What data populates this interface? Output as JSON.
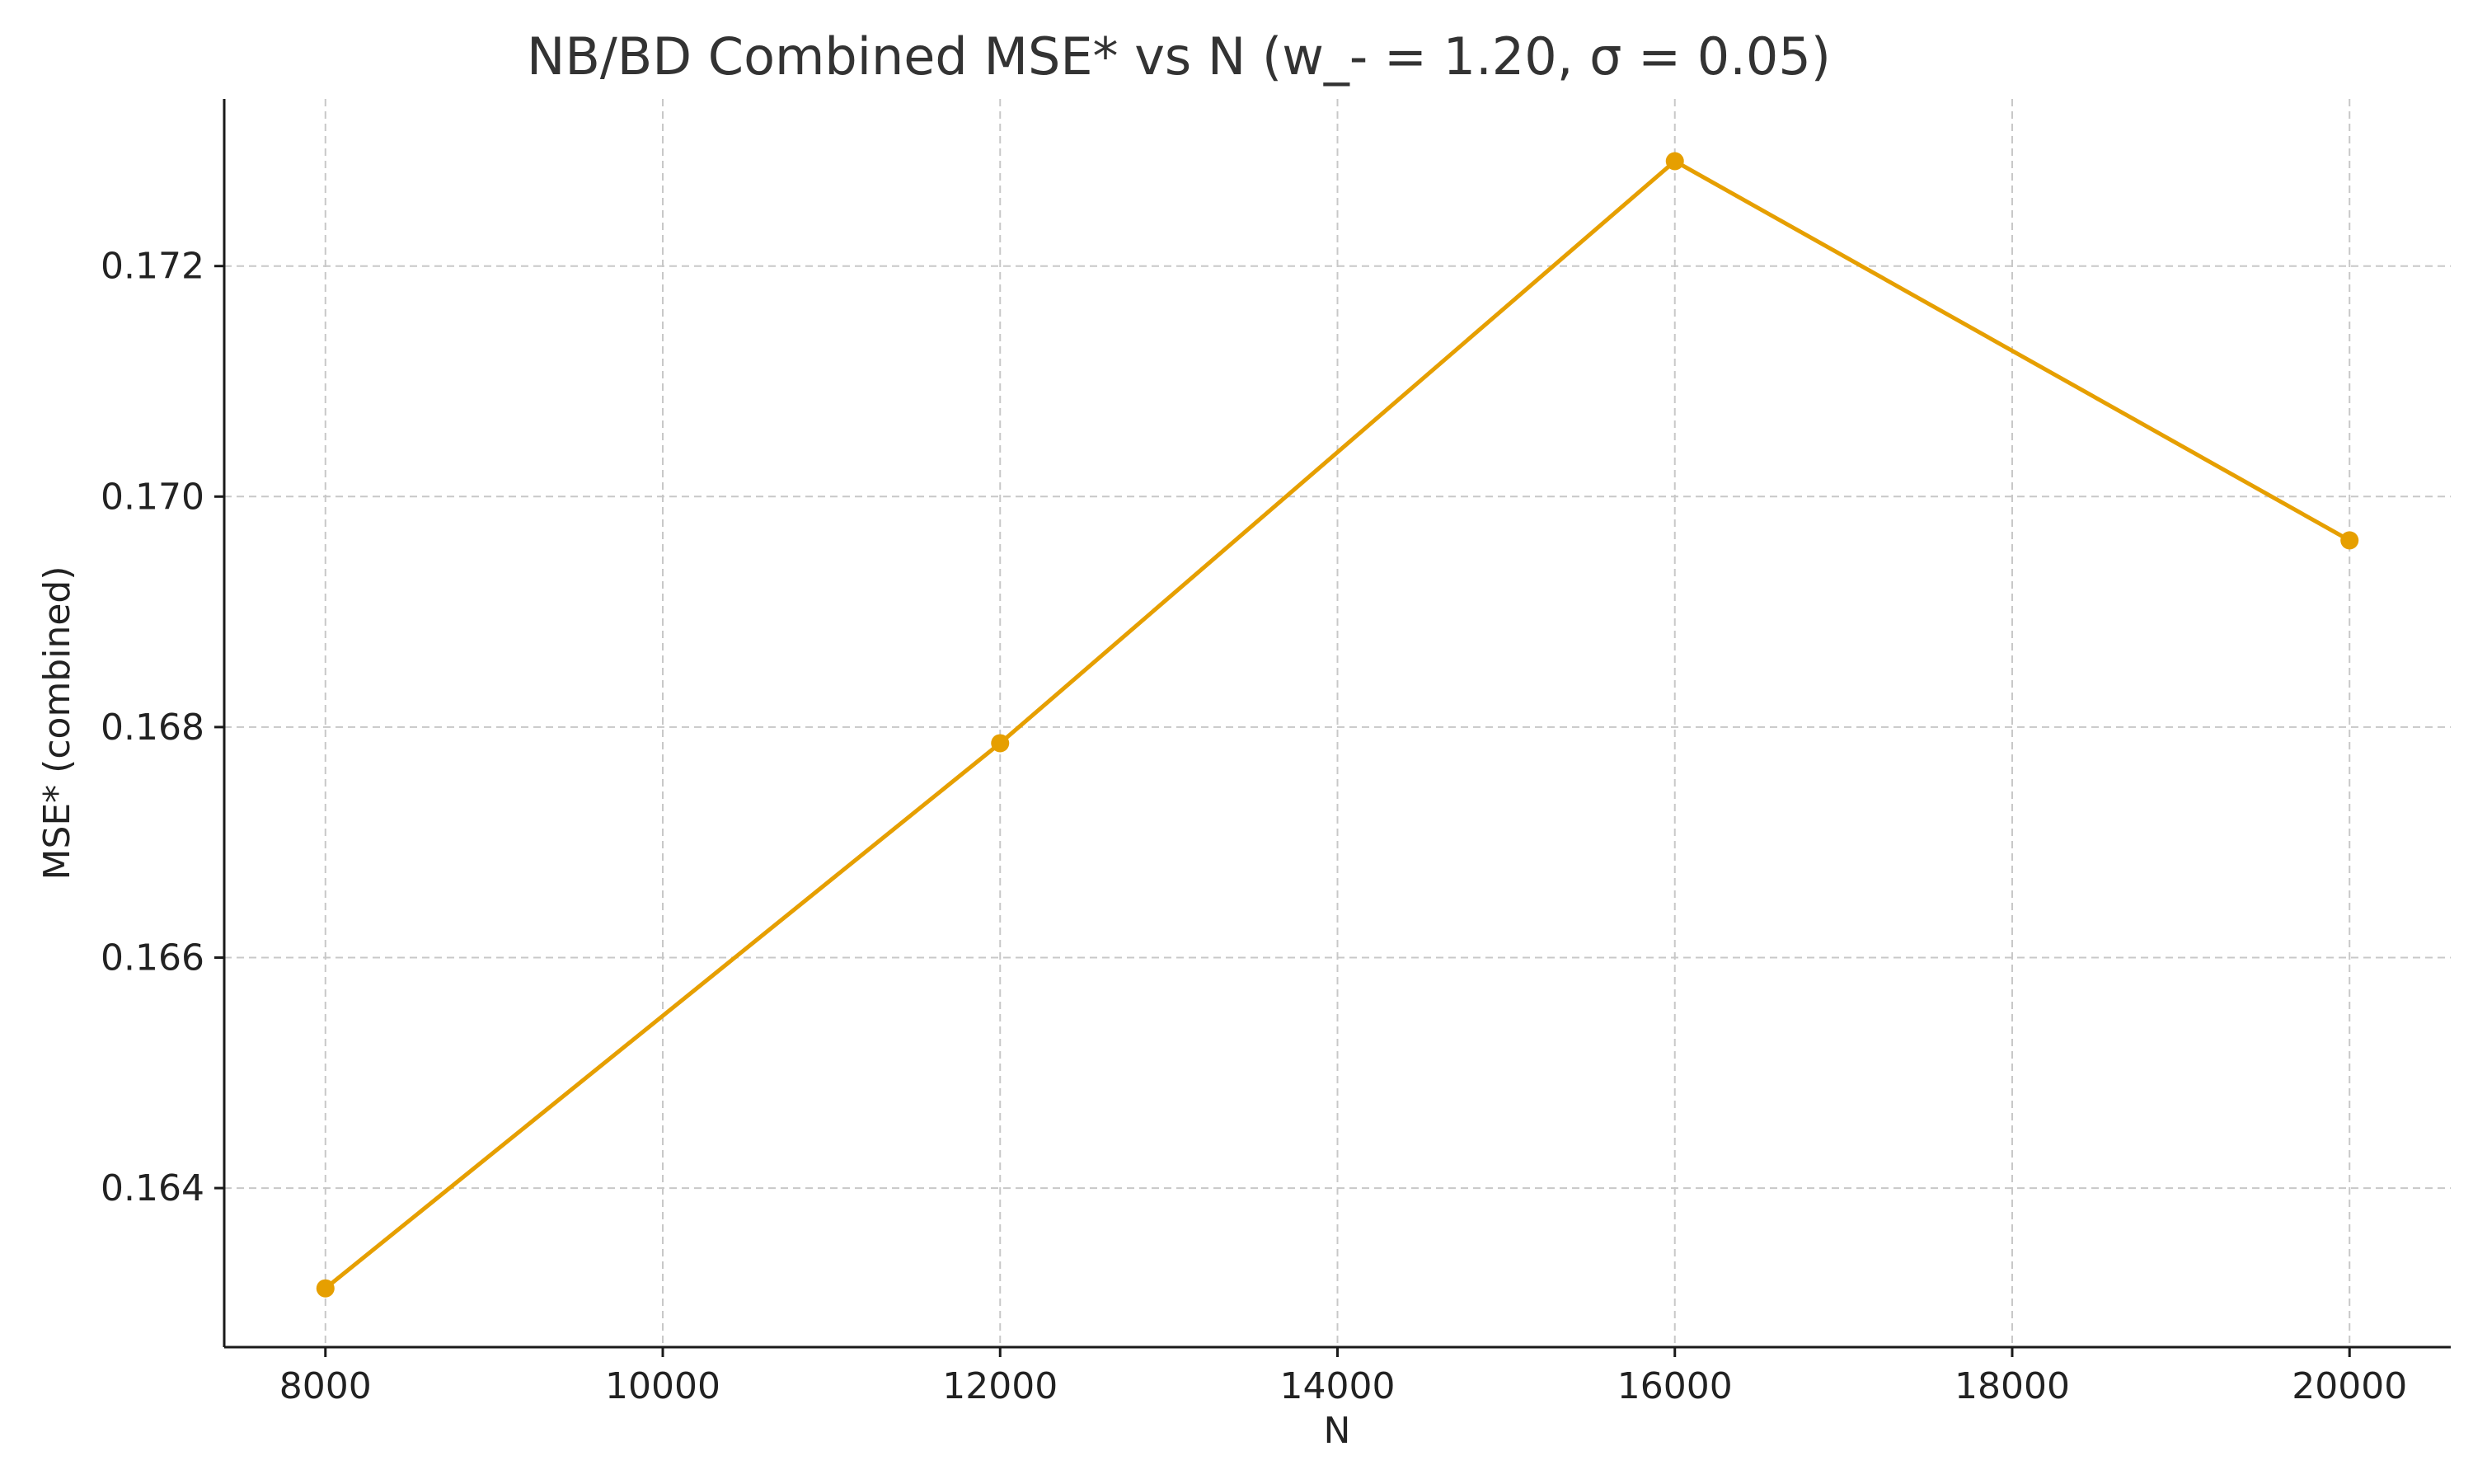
{
  "chart_data": {
    "type": "line",
    "title": "NB/BD Combined MSE* vs N (w_- = 1.20, σ = 0.05)",
    "xlabel": "N",
    "ylabel": "MSE* (combined)",
    "x": [
      8000,
      12000,
      16000,
      20000
    ],
    "series": [
      {
        "values": [
          0.16313,
          0.16786,
          0.17291,
          0.16962
        ],
        "color": "#E69F00",
        "marker": "circle"
      }
    ],
    "xlim": [
      7400,
      20600
    ],
    "ylim": [
      0.16262,
      0.17345
    ],
    "xticks": [
      8000,
      10000,
      12000,
      14000,
      16000,
      18000,
      20000
    ],
    "xtick_labels": [
      "8000",
      "10000",
      "12000",
      "14000",
      "16000",
      "18000",
      "20000"
    ],
    "yticks": [
      0.164,
      0.166,
      0.168,
      0.17,
      0.172
    ],
    "ytick_labels": [
      "0.164",
      "0.166",
      "0.168",
      "0.170",
      "0.172"
    ],
    "grid": true,
    "legend": "none"
  }
}
